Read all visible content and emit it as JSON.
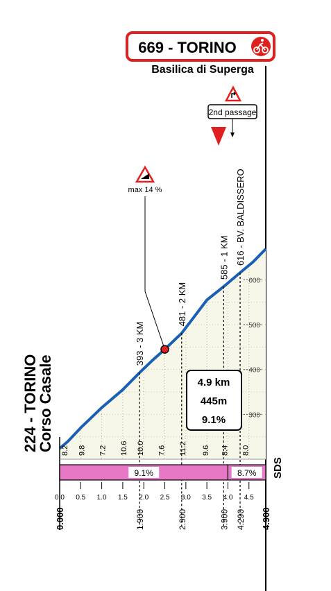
{
  "finish": {
    "label": "669 - TORINO",
    "subtitle": "Basilica di Superga"
  },
  "start": {
    "label": "224 - TORINO",
    "subtitle": "Corso Casale"
  },
  "second_passage": {
    "label": "2nd passage"
  },
  "max_gradient": {
    "label": "max 14 %"
  },
  "summary": {
    "distance": "4.9 km",
    "gain": "445m",
    "avg_gradient": "9.1%"
  },
  "brand": "SDS",
  "colors": {
    "profile_line": "#1a5fb4",
    "profile_fill": "#f6f7e8",
    "gradient_bar": "#e778c5",
    "finish_border": "#e02020",
    "triangle_red": "#e02020"
  },
  "icons": {
    "finish": "cyclist-icon",
    "max_gradient": "steep-warning-icon",
    "second_passage": "turn-right-warning-icon",
    "kilometer_marker": "red-triangle-icon"
  },
  "chart_data": {
    "type": "area",
    "profile": {
      "x": [
        0.0,
        0.2,
        0.5,
        1.0,
        1.5,
        1.9,
        2.2,
        2.5,
        2.9,
        3.2,
        3.5,
        3.9,
        4.29,
        4.6,
        4.9
      ],
      "y": [
        224,
        240,
        270,
        315,
        355,
        393,
        420,
        445,
        481,
        518,
        555,
        585,
        616,
        640,
        669
      ]
    },
    "y_ticks": [
      300,
      400,
      500,
      600
    ],
    "ylim": [
      150,
      700
    ],
    "x_ticks": [
      "0.0",
      "0.5",
      "1.0",
      "1.5",
      "2.0",
      "2.5",
      "3.0",
      "3.5",
      "4.0",
      "4.5"
    ],
    "x_tick_values": [
      0.0,
      0.5,
      1.0,
      1.5,
      2.0,
      2.5,
      3.0,
      3.5,
      4.0,
      4.5
    ],
    "xlim": [
      0.0,
      4.9
    ],
    "segment_gradients": [
      {
        "x": 0.1,
        "label": "8.2"
      },
      {
        "x": 0.5,
        "label": "9.8"
      },
      {
        "x": 1.0,
        "label": "7.2"
      },
      {
        "x": 1.5,
        "label": "10.6"
      },
      {
        "x": 1.9,
        "label": "10.0"
      },
      {
        "x": 2.4,
        "label": "7.6"
      },
      {
        "x": 2.9,
        "label": "11.2"
      },
      {
        "x": 3.45,
        "label": "9.6"
      },
      {
        "x": 3.9,
        "label": "8.4"
      },
      {
        "x": 4.4,
        "label": "8.0"
      }
    ],
    "gradient_bands": [
      {
        "from": 0.0,
        "to": 4.0,
        "label": "9.1%"
      },
      {
        "from": 4.0,
        "to": 4.9,
        "label": "8.7%"
      }
    ],
    "points": [
      {
        "x": 1.9,
        "altitude": 393,
        "label": "393 - 3 KM"
      },
      {
        "x": 2.9,
        "altitude": 481,
        "label": "481 - 2 KM"
      },
      {
        "x": 3.9,
        "altitude": 585,
        "label": "585 - 1 KM"
      },
      {
        "x": 4.29,
        "altitude": 616,
        "label": "616 - BV. BALDISSERO"
      }
    ],
    "km_labels": [
      {
        "x": 0.0,
        "label": "0.000"
      },
      {
        "x": 1.9,
        "label": "1.900"
      },
      {
        "x": 2.9,
        "label": "2.900"
      },
      {
        "x": 3.9,
        "label": "3.900"
      },
      {
        "x": 4.29,
        "label": "4.290"
      },
      {
        "x": 4.9,
        "label": "4.900"
      }
    ],
    "max_gradient_x": 2.5
  }
}
